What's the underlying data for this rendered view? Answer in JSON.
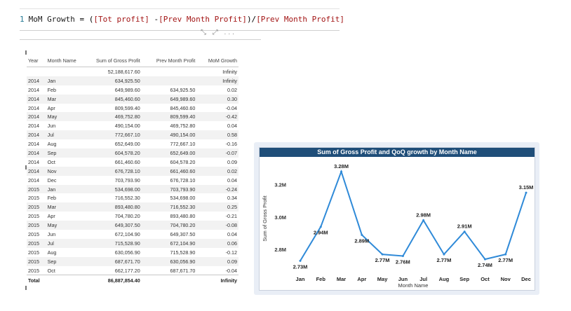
{
  "formula": {
    "line_number": "1",
    "measure_name": "MoM Growth",
    "equals": " = ",
    "open": "(",
    "field1": "[Tot profit]",
    "minus": " -",
    "field2": "[Prev Month Profit]",
    "close_div": ")/",
    "field3": "[Prev Month Profit]",
    "tools": "⤡ ⤢ ..."
  },
  "table": {
    "headers": [
      "Year",
      "Month Name",
      "Sum of Gross Profit",
      "Prev Month Profit",
      "MoM Growth"
    ],
    "rows": [
      [
        "",
        "",
        "52,188,617.60",
        "",
        "Infinity"
      ],
      [
        "2014",
        "Jan",
        "634,925.50",
        "",
        "Infinity"
      ],
      [
        "2014",
        "Feb",
        "649,989.60",
        "634,925.50",
        "0.02"
      ],
      [
        "2014",
        "Mar",
        "845,460.60",
        "649,989.60",
        "0.30"
      ],
      [
        "2014",
        "Apr",
        "809,599.40",
        "845,460.60",
        "-0.04"
      ],
      [
        "2014",
        "May",
        "469,752.80",
        "809,599.40",
        "-0.42"
      ],
      [
        "2014",
        "Jun",
        "490,154.00",
        "469,752.80",
        "0.04"
      ],
      [
        "2014",
        "Jul",
        "772,667.10",
        "490,154.00",
        "0.58"
      ],
      [
        "2014",
        "Aug",
        "652,649.00",
        "772,667.10",
        "-0.16"
      ],
      [
        "2014",
        "Sep",
        "604,578.20",
        "652,649.00",
        "-0.07"
      ],
      [
        "2014",
        "Oct",
        "661,460.60",
        "604,578.20",
        "0.09"
      ],
      [
        "2014",
        "Nov",
        "676,728.10",
        "661,460.60",
        "0.02"
      ],
      [
        "2014",
        "Dec",
        "703,793.90",
        "676,728.10",
        "0.04"
      ],
      [
        "2015",
        "Jan",
        "534,698.00",
        "703,793.90",
        "-0.24"
      ],
      [
        "2015",
        "Feb",
        "716,552.30",
        "534,698.00",
        "0.34"
      ],
      [
        "2015",
        "Mar",
        "893,480.80",
        "716,552.30",
        "0.25"
      ],
      [
        "2015",
        "Apr",
        "704,780.20",
        "893,480.80",
        "-0.21"
      ],
      [
        "2015",
        "May",
        "649,307.50",
        "704,780.20",
        "-0.08"
      ],
      [
        "2015",
        "Jun",
        "672,104.90",
        "649,307.50",
        "0.04"
      ],
      [
        "2015",
        "Jul",
        "715,528.90",
        "672,104.90",
        "0.06"
      ],
      [
        "2015",
        "Aug",
        "630,056.90",
        "715,528.90",
        "-0.12"
      ],
      [
        "2015",
        "Sep",
        "687,671.70",
        "630,056.90",
        "0.09"
      ],
      [
        "2015",
        "Oct",
        "662,177.20",
        "687,671.70",
        "-0.04"
      ]
    ],
    "total": [
      "Total",
      "",
      "86,887,854.40",
      "",
      "Infinity"
    ]
  },
  "chart_data": {
    "type": "line",
    "title": "Sum of Gross Profit and QoQ growth by Month Name",
    "xlabel": "Month Name",
    "ylabel": "Sum of Gross Profit",
    "categories": [
      "Jan",
      "Feb",
      "Mar",
      "Apr",
      "May",
      "Jun",
      "Jul",
      "Aug",
      "Sep",
      "Oct",
      "Nov",
      "Dec"
    ],
    "values": [
      2.73,
      2.94,
      3.28,
      2.89,
      2.77,
      2.76,
      2.98,
      2.77,
      2.91,
      2.74,
      2.77,
      3.15
    ],
    "data_labels": [
      "2.73M",
      "2.94M",
      "3.28M",
      "2.89M",
      "2.77M",
      "2.76M",
      "2.98M",
      "2.77M",
      "2.91M",
      "2.74M",
      "2.77M",
      "3.15M"
    ],
    "yticks": [
      2.8,
      3.0,
      3.2
    ],
    "ytick_labels": [
      "2.8M",
      "3.0M",
      "3.2M"
    ],
    "ylim": [
      2.68,
      3.31
    ],
    "grid": false,
    "line_color": "#2f8ad8"
  }
}
